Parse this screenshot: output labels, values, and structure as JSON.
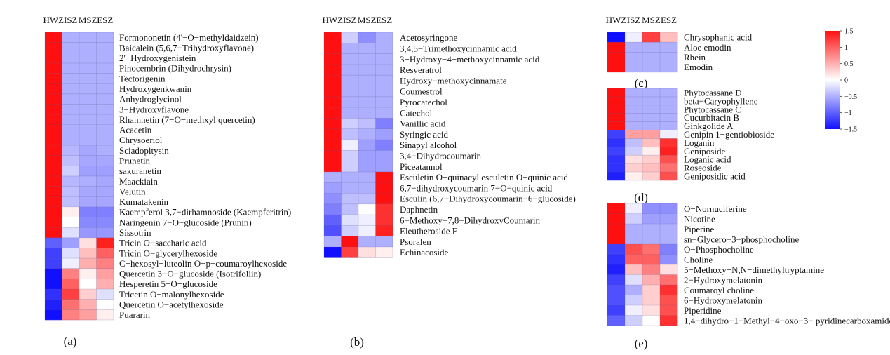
{
  "chart_data": [
    {
      "type": "heatmap",
      "panel_label": "(a)",
      "columns": [
        "HWZ",
        "ISZ",
        "MSZ",
        "ESZ"
      ],
      "rows": [
        "Formononetin (4'−O−methyldaidzein)",
        "Baicalein (5,6,7−Trihydroxyflavone)",
        "2'−Hydroxygenistein",
        "Pinocembrin (Dihydrochrysin)",
        "Tectorigenin",
        "Hydroxygenkwanin",
        "Anhydroglycinol",
        "3−Hydroxyflavone",
        "Rhamnetin (7−O−methxyl quercetin)",
        "Acacetin",
        "Chrysoeriol",
        "Sciadopitysin",
        "Prunetin",
        "sakuranetin",
        "Maackiain",
        "Velutin",
        "Kumatakenin",
        "Kaempferol 3,7−dirhamnoside (Kaempferitrin)",
        "Naringenin 7−O−glucoside (Prunin)",
        "Sissotrin",
        "Tricin O−saccharic acid",
        "Tricin O−glycerylhexoside",
        "C−hexosyl−luteolin O−p−coumaroylhexoside",
        "Quercetin 3−O−glucoside (Isotrifoliin)",
        "Hesperetin 5−O−glucoside",
        "Tricetin O−malonylhexoside",
        "Quercetin O−acetylhexoside",
        "Puararin"
      ],
      "values": [
        [
          1.5,
          -0.5,
          -0.5,
          -0.5
        ],
        [
          1.5,
          -0.5,
          -0.5,
          -0.5
        ],
        [
          1.5,
          -0.5,
          -0.5,
          -0.5
        ],
        [
          1.5,
          -0.5,
          -0.5,
          -0.5
        ],
        [
          1.5,
          -0.5,
          -0.5,
          -0.5
        ],
        [
          1.5,
          -0.5,
          -0.5,
          -0.5
        ],
        [
          1.5,
          -0.5,
          -0.5,
          -0.5
        ],
        [
          1.5,
          -0.5,
          -0.5,
          -0.5
        ],
        [
          1.5,
          -0.5,
          -0.5,
          -0.5
        ],
        [
          1.5,
          -0.5,
          -0.5,
          -0.5
        ],
        [
          1.5,
          -0.5,
          -0.5,
          -0.5
        ],
        [
          1.5,
          -0.45,
          -0.55,
          -0.5
        ],
        [
          1.5,
          -0.4,
          -0.55,
          -0.55
        ],
        [
          1.5,
          -0.3,
          -0.6,
          -0.6
        ],
        [
          1.5,
          -0.45,
          -0.5,
          -0.55
        ],
        [
          1.5,
          -0.4,
          -0.55,
          -0.55
        ],
        [
          1.5,
          -0.4,
          -0.55,
          -0.55
        ],
        [
          1.5,
          0.1,
          -0.8,
          -0.8
        ],
        [
          1.5,
          0.0,
          -0.75,
          -0.75
        ],
        [
          1.5,
          -0.2,
          -0.65,
          -0.65
        ],
        [
          -1.0,
          -0.6,
          0.2,
          1.4
        ],
        [
          -1.2,
          -0.2,
          0.4,
          1.0
        ],
        [
          -1.2,
          -0.1,
          0.5,
          0.8
        ],
        [
          -1.5,
          0.8,
          0.1,
          0.6
        ],
        [
          -1.5,
          1.0,
          0.0,
          0.5
        ],
        [
          -1.3,
          1.2,
          0.3,
          -0.2
        ],
        [
          -1.4,
          0.9,
          0.5,
          0.0
        ],
        [
          -1.5,
          0.8,
          0.6,
          0.1
        ]
      ],
      "caption": "(a)"
    },
    {
      "type": "heatmap",
      "panel_label": "(b)",
      "columns": [
        "HWZ",
        "ISZ",
        "MSZ",
        "ESZ"
      ],
      "rows": [
        "Acetosyringone",
        "3,4,5−Trimethoxycinnamic acid",
        "3−Hydroxy−4−methoxycinnamic acid",
        "Resveratrol",
        "Hydroxy−methoxycinnamate",
        "Coumestrol",
        "Pyrocatechol",
        "Catechol",
        "Vanillic acid",
        "Syringic acid",
        "Sinapyl alcohol",
        "3,4−Dihydrocoumarin",
        "Piceatannol",
        "Esculetin O−quinacyl esculetin O−quinic acid",
        "6,7−dihydroxycoumarin 7−O−quinic acid",
        "Esculin (6,7−Dihydroxycoumarin−6−glucoside)",
        "Daphnetin",
        "6−Methoxy−7,8−DihydroxyCoumarin",
        "Eleutheroside E",
        "Psoralen",
        "Echinacoside"
      ],
      "values": [
        [
          1.5,
          -0.3,
          -0.7,
          -0.5
        ],
        [
          1.5,
          -0.5,
          -0.5,
          -0.5
        ],
        [
          1.5,
          -0.5,
          -0.5,
          -0.5
        ],
        [
          1.5,
          -0.5,
          -0.5,
          -0.5
        ],
        [
          1.5,
          -0.5,
          -0.5,
          -0.5
        ],
        [
          1.5,
          -0.5,
          -0.5,
          -0.5
        ],
        [
          1.5,
          -0.5,
          -0.5,
          -0.5
        ],
        [
          1.5,
          -0.5,
          -0.5,
          -0.5
        ],
        [
          1.5,
          -0.3,
          -0.4,
          -0.8
        ],
        [
          1.5,
          -0.4,
          -0.5,
          -0.6
        ],
        [
          1.5,
          -0.1,
          -0.6,
          -0.8
        ],
        [
          1.5,
          -0.3,
          -0.6,
          -0.6
        ],
        [
          1.5,
          -0.3,
          -0.6,
          -0.6
        ],
        [
          -0.5,
          -0.5,
          -0.5,
          1.5
        ],
        [
          -0.6,
          -0.5,
          -0.5,
          1.5
        ],
        [
          -0.7,
          -0.4,
          -0.4,
          1.5
        ],
        [
          -0.8,
          -0.4,
          0.0,
          1.3
        ],
        [
          -1.0,
          -0.2,
          -0.1,
          1.3
        ],
        [
          -1.1,
          -0.3,
          -0.1,
          1.4
        ],
        [
          -0.5,
          1.5,
          -0.5,
          -0.5
        ],
        [
          -1.5,
          1.2,
          0.2,
          0.1
        ]
      ],
      "caption": "(b)"
    },
    {
      "type": "heatmap",
      "panel_label": "(c)",
      "columns": [
        "HWZ",
        "ISZ",
        "MSZ",
        "ESZ"
      ],
      "rows": [
        "Chrysophanic acid",
        "Aloe emodin",
        "Rhein",
        "Emodin"
      ],
      "values": [
        [
          -1.5,
          -0.1,
          1.2,
          0.4
        ],
        [
          1.5,
          -0.5,
          -0.5,
          -0.5
        ],
        [
          1.5,
          -0.5,
          -0.5,
          -0.5
        ],
        [
          1.5,
          -0.5,
          -0.5,
          -0.5
        ]
      ],
      "caption": "(c)"
    },
    {
      "type": "heatmap",
      "panel_label": "(d)",
      "columns": [
        "HWZ",
        "ISZ",
        "MSZ",
        "ESZ"
      ],
      "rows": [
        "Phytocassane D",
        "beta−Caryophyllene",
        "Phytocassane C",
        "Cucurbitacin B",
        "Ginkgolide A",
        "Genipin 1−gentiobioside",
        "Loganin",
        "Geniposide",
        "Loganic acid",
        "Roseoside",
        "Geniposidic acid"
      ],
      "values": [
        [
          1.5,
          -0.5,
          -0.5,
          -0.5
        ],
        [
          1.5,
          -0.5,
          -0.5,
          -0.5
        ],
        [
          1.5,
          -0.5,
          -0.5,
          -0.5
        ],
        [
          1.5,
          -0.5,
          -0.5,
          -0.5
        ],
        [
          1.5,
          -0.5,
          -0.5,
          -0.5
        ],
        [
          -1.2,
          0.6,
          0.6,
          -0.1
        ],
        [
          -1.3,
          -0.4,
          0.4,
          1.3
        ],
        [
          -1.2,
          -0.3,
          0.1,
          1.4
        ],
        [
          -1.3,
          0.2,
          0.3,
          1.1
        ],
        [
          -1.3,
          0.3,
          0.4,
          0.9
        ],
        [
          -1.4,
          0.1,
          0.3,
          1.1
        ]
      ],
      "caption": "(d)"
    },
    {
      "type": "heatmap",
      "panel_label": "(e)",
      "columns": [
        "HWZ",
        "ISZ",
        "MSZ",
        "ESZ"
      ],
      "rows": [
        "O−Nornuciferine",
        "Nicotine",
        "Piperine",
        "sn−Glycero−3−phosphocholine",
        "O−Phosphocholine",
        "Choline",
        "5−Methoxy−N,N−dimethyltryptamine",
        "2−Hydroxymelatonin",
        "Coumaroyl choline",
        "6−Hydroxymelatonin",
        "Piperidine",
        "1,4−dihydro−1−Methyl−4−oxo−3− pyridinecarboxamide"
      ],
      "values": [
        [
          1.5,
          -0.1,
          -0.7,
          -0.7
        ],
        [
          1.5,
          -0.3,
          -0.6,
          -0.6
        ],
        [
          1.5,
          -0.5,
          -0.5,
          -0.5
        ],
        [
          1.5,
          -0.5,
          -0.5,
          -0.5
        ],
        [
          -1.2,
          1.1,
          0.9,
          -0.8
        ],
        [
          -1.3,
          1.0,
          1.0,
          -0.7
        ],
        [
          -1.4,
          0.4,
          0.8,
          0.2
        ],
        [
          -1.2,
          -0.2,
          0.5,
          0.9
        ],
        [
          -1.1,
          -0.5,
          0.3,
          1.3
        ],
        [
          -1.1,
          -0.3,
          0.3,
          1.1
        ],
        [
          -1.2,
          -0.1,
          0.2,
          1.1
        ],
        [
          -1.0,
          -0.3,
          0.0,
          1.3
        ]
      ],
      "caption": "(e)"
    }
  ],
  "colorbar": {
    "min": -1.5,
    "max": 1.5,
    "ticks": [
      "1.5",
      "1",
      "0.5",
      "0",
      "−0.5",
      "−1",
      "−1.5"
    ],
    "tick_values": [
      1.5,
      1,
      0.5,
      0,
      -0.5,
      -1,
      -1.5
    ],
    "colors": {
      "low": "#1010ff",
      "mid": "#ffffff",
      "high": "#ff1010"
    }
  }
}
